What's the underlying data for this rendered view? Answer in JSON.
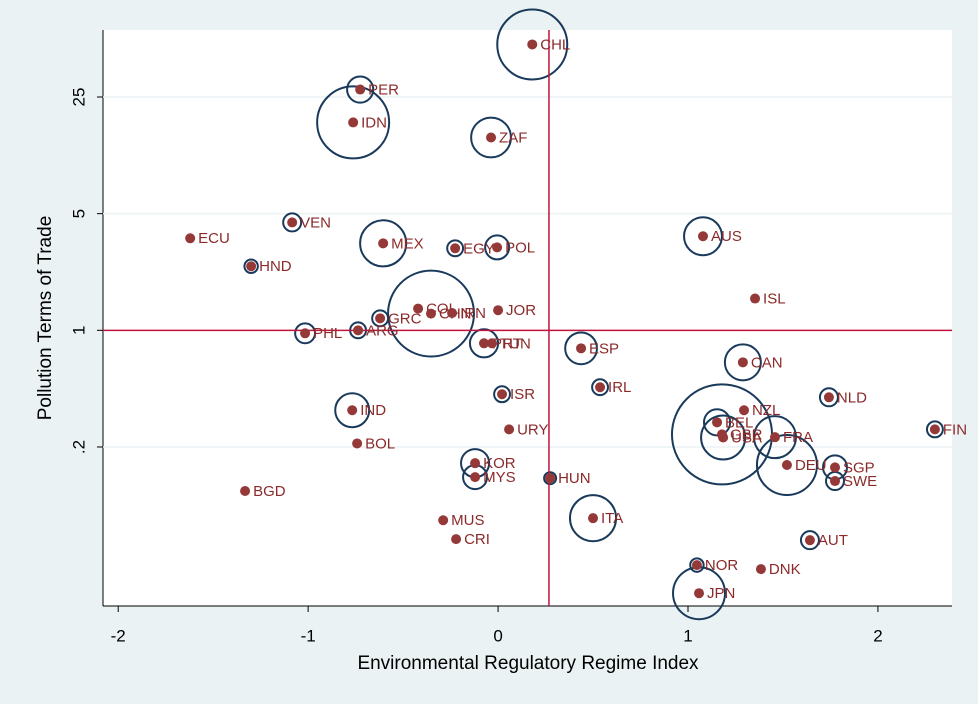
{
  "chart_data": {
    "type": "scatter",
    "x_label": "Environmental Regulatory Regime Index",
    "y_label": "Pollution Terms of Trade",
    "y_log": true,
    "xlim": [
      -2.08,
      2.39
    ],
    "ylim": [
      0.0223,
      63
    ],
    "xticks": [
      -2,
      -1,
      0,
      1,
      2
    ],
    "yticks": [
      {
        "value": 0.2,
        "label": ".2"
      },
      1,
      5,
      25
    ],
    "grid": true,
    "reference_lines": {
      "x": 0.268,
      "y": 1
    },
    "dot_color": "#943838",
    "bubble_color": "#1a3a5c",
    "reference_color": "#c0143c",
    "labels": [
      "CHL",
      "PER",
      "IDN",
      "ZAF",
      "VEN",
      "ECU",
      "MEX",
      "EGY",
      "POL",
      "AUS",
      "HND",
      "ISL",
      "COL",
      "CHN",
      "IRN",
      "JOR",
      "GRC",
      "PHL",
      "ARG",
      "PRT",
      "TUN",
      "ESP",
      "CAN",
      "IRL",
      "ISR",
      "NLD",
      "IND",
      "NZL",
      "BEL",
      "URY",
      "FIN",
      "GBR",
      "USA",
      "FRA",
      "BOL",
      "KOR",
      "DEU",
      "SGP",
      "MYS",
      "HUN",
      "SWE",
      "BGD",
      "ITA",
      "MUS",
      "CRI",
      "AUT",
      "NOR",
      "DNK",
      "JPN"
    ],
    "x": [
      0.18,
      -0.726,
      -0.763,
      -0.037,
      -1.084,
      -1.621,
      -0.605,
      -0.226,
      -0.005,
      1.079,
      -1.3,
      1.353,
      -0.421,
      -0.353,
      -0.242,
      0,
      -0.621,
      -1.016,
      -0.737,
      -0.074,
      -0.032,
      0.437,
      1.289,
      0.537,
      0.021,
      1.742,
      -0.768,
      1.295,
      1.153,
      0.058,
      2.3,
      1.179,
      1.185,
      1.458,
      -0.742,
      -0.121,
      1.521,
      1.774,
      -0.121,
      0.274,
      1.774,
      -1.332,
      0.5,
      -0.289,
      -0.221,
      1.642,
      1.047,
      1.384,
      1.058
    ],
    "y": [
      51.6,
      27.7,
      17.6,
      14.3,
      4.43,
      3.56,
      3.32,
      3.1,
      3.14,
      3.66,
      2.42,
      1.55,
      1.35,
      1.26,
      1.27,
      1.32,
      1.18,
      0.96,
      1.0,
      0.836,
      0.836,
      0.78,
      0.643,
      0.456,
      0.414,
      0.397,
      0.332,
      0.332,
      0.281,
      0.255,
      0.255,
      0.238,
      0.228,
      0.229,
      0.21,
      0.16,
      0.156,
      0.151,
      0.132,
      0.13,
      0.125,
      0.109,
      0.0749,
      0.0728,
      0.0561,
      0.0553,
      0.0392,
      0.0371,
      0.0266
    ],
    "sizes": [
      136,
      19,
      144,
      44,
      9,
      0,
      59,
      7,
      16,
      40,
      5,
      0,
      0,
      205,
      0,
      0,
      7,
      11,
      7,
      22,
      0,
      28,
      36,
      7,
      7,
      9,
      32,
      0,
      19,
      0,
      7,
      278,
      54,
      49,
      0,
      22,
      100,
      16,
      16,
      4,
      9,
      0,
      59,
      0,
      0,
      9,
      5,
      0,
      75
    ]
  }
}
